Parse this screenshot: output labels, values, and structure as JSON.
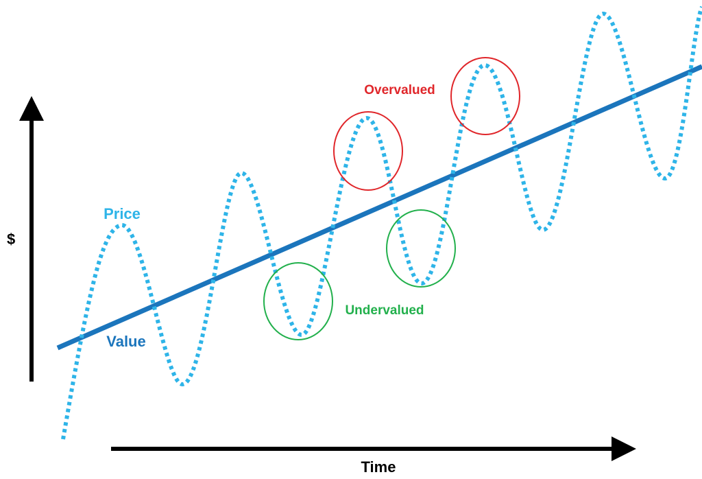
{
  "labels": {
    "y_axis": "$",
    "x_axis": "Time",
    "price": "Price",
    "value": "Value",
    "overvalued": "Overvalued",
    "undervalued": "Undervalued"
  },
  "colors": {
    "axis": "#000000",
    "price": "#2EB4E8",
    "value": "#1B75BC",
    "overvalued": "#E0262A",
    "undervalued": "#22B04C"
  }
}
